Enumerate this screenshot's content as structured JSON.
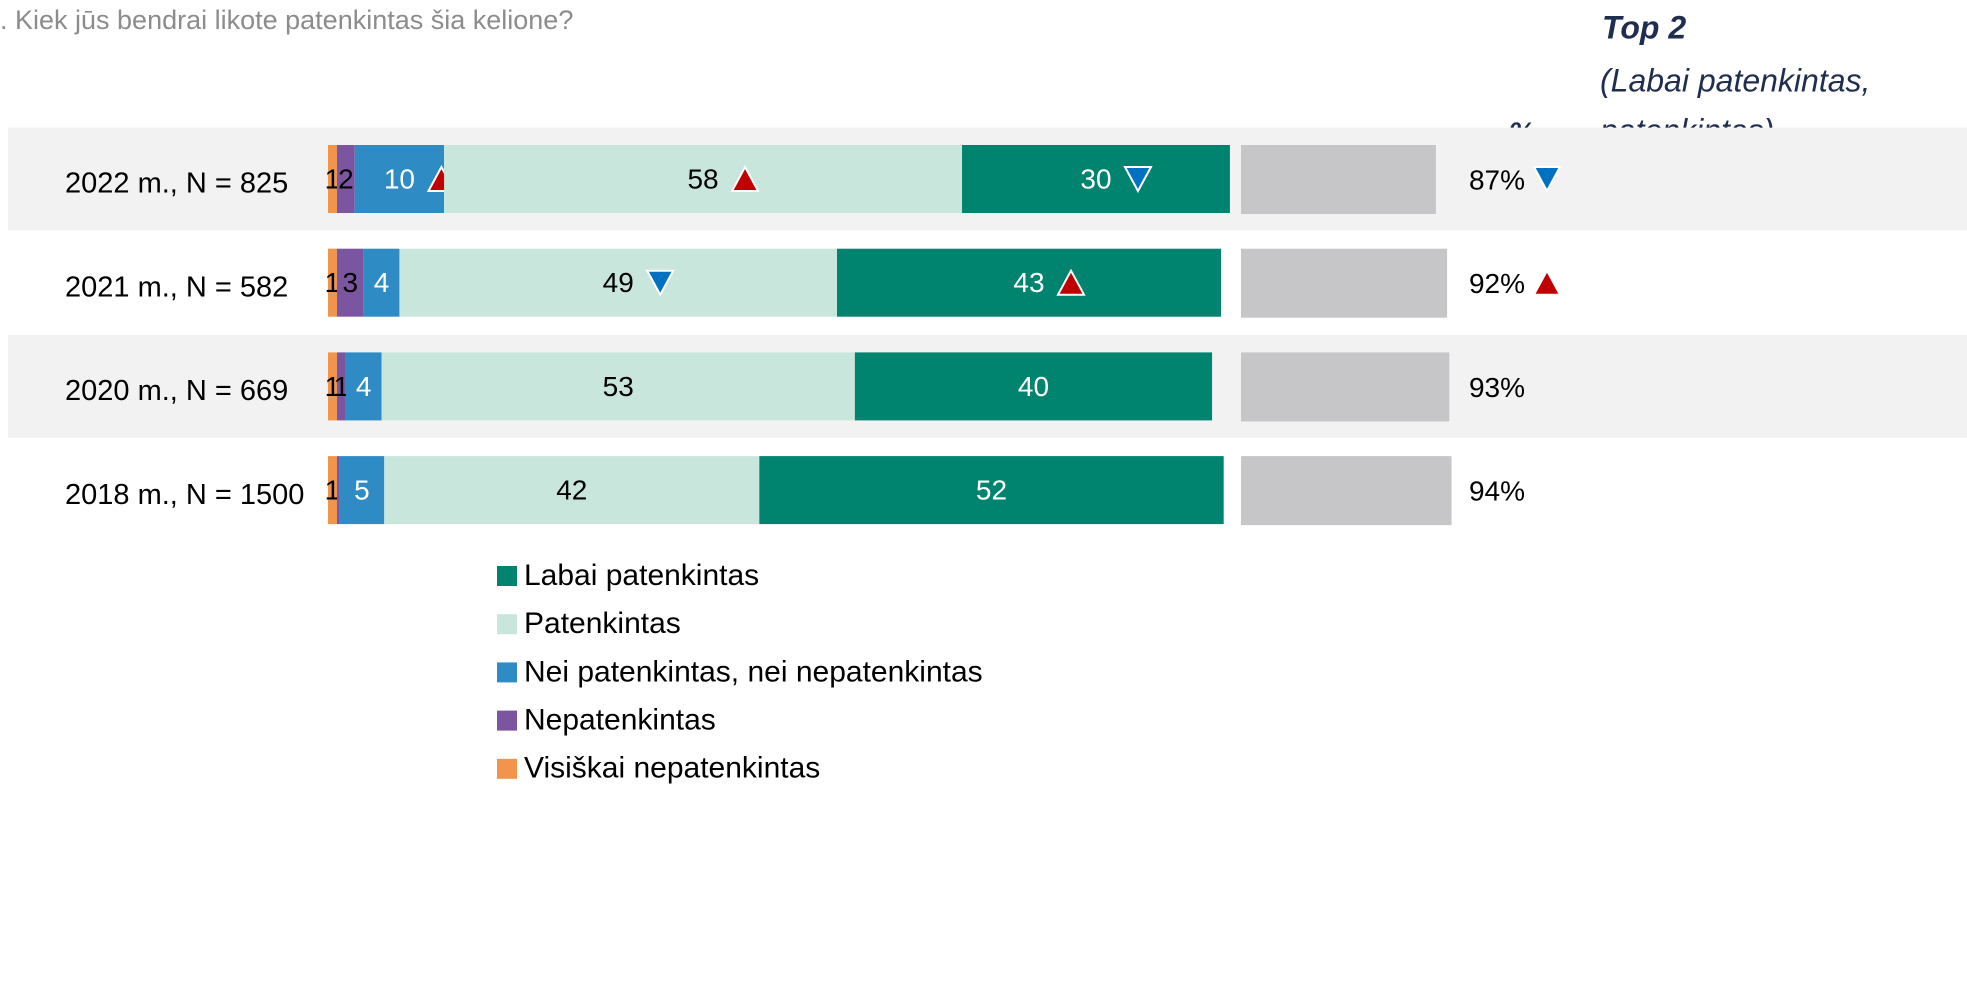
{
  "chart_data": {
    "type": "bar",
    "orientation": "horizontal",
    "stacked": true,
    "title": ". Kiek jūs bendrai likote patenkintas šia kelione?",
    "unit_label": "%",
    "categories": [
      "2022 m.,   N = 825",
      "2021 m.,   N = 582",
      "2020 m.,   N = 669",
      "2018 m.,  N = 1500"
    ],
    "xlim": [
      0,
      100
    ],
    "series": [
      {
        "name": "Visiškai nepatenkintas",
        "color": "#f0954a",
        "label_color": "#000000",
        "values": [
          1,
          1,
          1,
          1
        ]
      },
      {
        "name": "Nepatenkintas",
        "color": "#7b55a0",
        "label_color": "#000000",
        "values": [
          2,
          3,
          1,
          0.3
        ],
        "value_labels": [
          "2",
          "3",
          "1",
          null
        ]
      },
      {
        "name": "Nei patenkintas, nei nepatenkintas",
        "color": "#2e8bc4",
        "label_color": "#ffffff",
        "values": [
          10,
          4,
          4,
          5
        ],
        "markers": [
          "up",
          "down",
          null,
          null
        ]
      },
      {
        "name": "Patenkintas",
        "color": "#c8e6dc",
        "label_color": "#000000",
        "values": [
          58,
          49,
          53,
          42
        ],
        "markers": [
          "up",
          "down",
          null,
          null
        ]
      },
      {
        "name": "Labai patenkintas",
        "color": "#00836f",
        "label_color": "#ffffff",
        "values": [
          30,
          43,
          40,
          52
        ],
        "markers": [
          "down",
          "up",
          null,
          null
        ]
      }
    ],
    "top2": {
      "title": "Top 2",
      "subtitle": [
        "(Labai patenkintas,",
        "patenkintas)"
      ],
      "color": "#c6c6c8",
      "xlim": [
        0,
        100
      ],
      "values": [
        87,
        92,
        93,
        94
      ],
      "value_labels": [
        "87%",
        "92%",
        "93%",
        "94%"
      ],
      "markers": [
        "down",
        "up",
        null,
        null
      ]
    },
    "marker_colors": {
      "up": "#c00000",
      "down": "#0070c0"
    }
  }
}
